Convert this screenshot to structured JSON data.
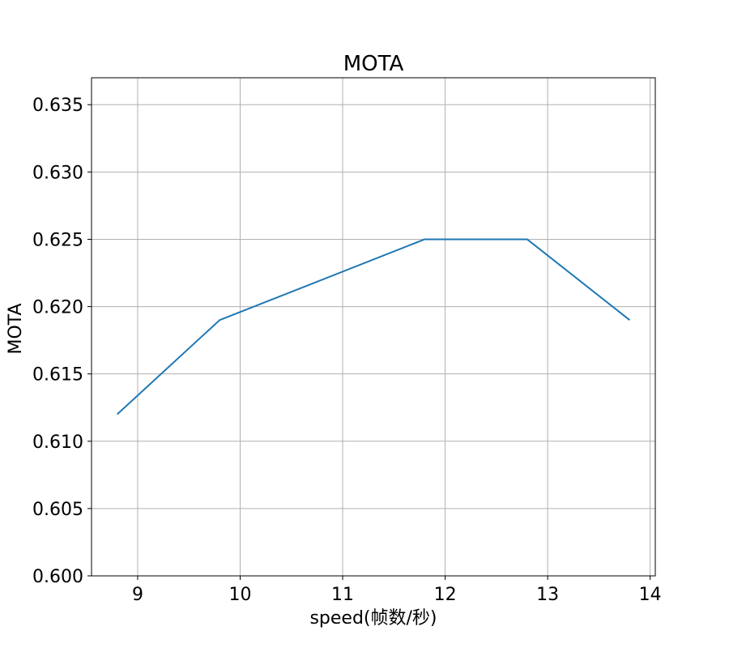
{
  "chart_data": {
    "type": "line",
    "title": "MOTA",
    "xlabel": "speed(帧数/秒)",
    "ylabel": "MOTA",
    "xlim": [
      8.55,
      14.05
    ],
    "ylim": [
      0.6,
      0.637
    ],
    "xticks": [
      9,
      10,
      11,
      12,
      13,
      14
    ],
    "yticks": [
      0.6,
      0.605,
      0.61,
      0.615,
      0.62,
      0.625,
      0.63,
      0.635
    ],
    "xtick_labels": [
      "9",
      "10",
      "11",
      "12",
      "13",
      "14"
    ],
    "ytick_labels": [
      "0.600",
      "0.605",
      "0.610",
      "0.615",
      "0.620",
      "0.625",
      "0.630",
      "0.635"
    ],
    "grid": true,
    "series": [
      {
        "color": "#1f77b4",
        "x": [
          8.8,
          9.8,
          11.8,
          12.8,
          13.8
        ],
        "y": [
          0.612,
          0.619,
          0.625,
          0.625,
          0.619
        ]
      }
    ]
  }
}
